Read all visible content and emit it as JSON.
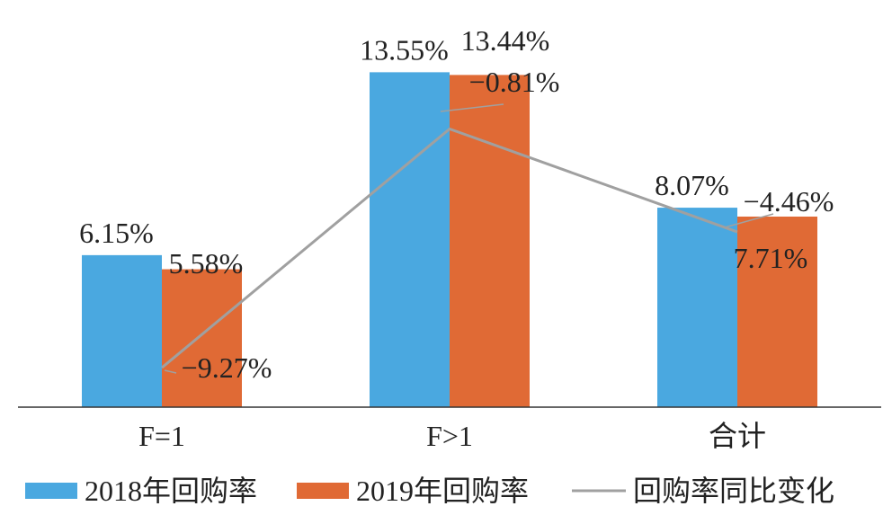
{
  "chart_data": {
    "type": "bar",
    "categories": [
      "F=1",
      "F>1",
      "合计"
    ],
    "series": [
      {
        "name": "2018年回购率",
        "kind": "bar",
        "color": "#4aa8e0",
        "values": [
          6.15,
          13.55,
          8.07
        ],
        "labels": [
          "6.15%",
          "13.55%",
          "8.07%"
        ]
      },
      {
        "name": "2019年回购率",
        "kind": "bar",
        "color": "#e06a35",
        "values": [
          5.58,
          13.44,
          7.71
        ],
        "labels": [
          "5.58%",
          "13.44%",
          "7.71%"
        ]
      },
      {
        "name": "回购率同比变化",
        "kind": "line",
        "color": "#a0a0a0",
        "values": [
          -9.27,
          -0.81,
          -4.46
        ],
        "labels": [
          "−9.27%",
          "−0.81%",
          "−4.46%"
        ]
      }
    ],
    "ylim": [
      0,
      14
    ],
    "line_ylim": [
      -10,
      0
    ],
    "grid": false,
    "legend_position": "bottom"
  }
}
